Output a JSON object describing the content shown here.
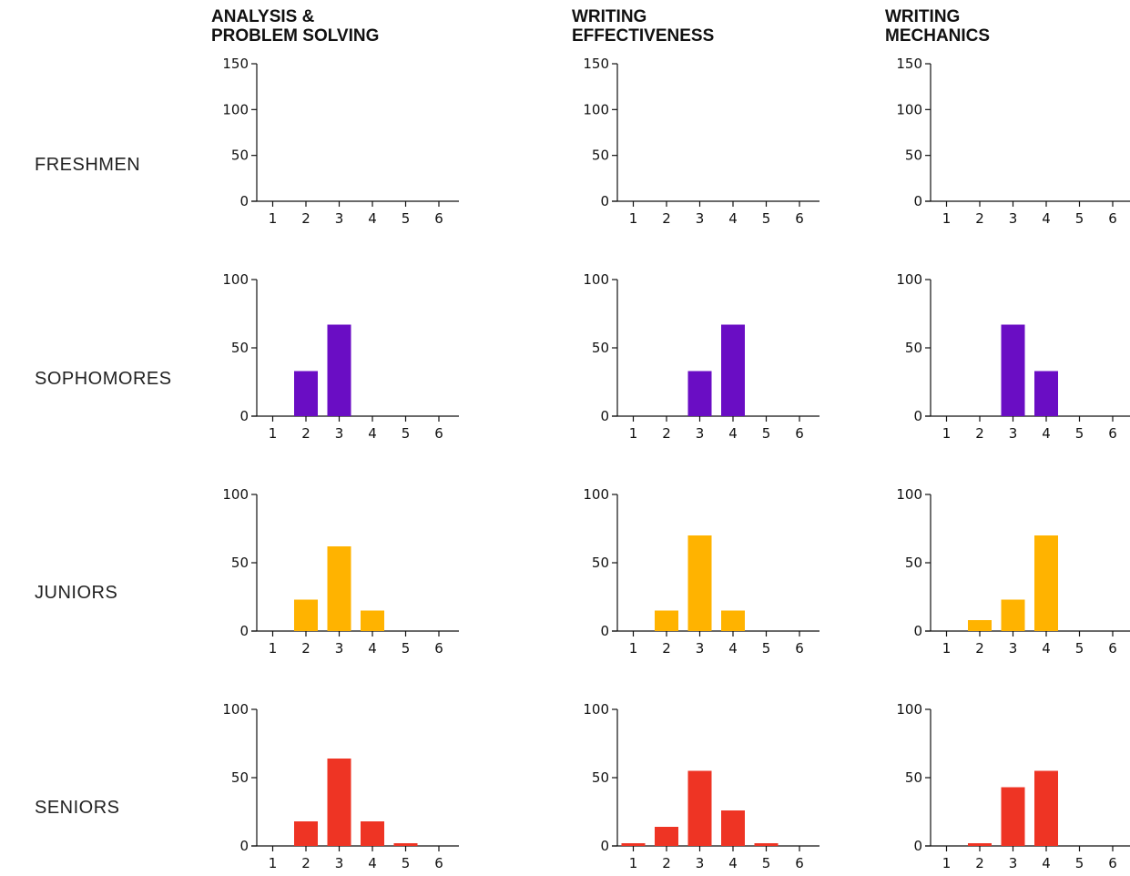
{
  "columns": [
    {
      "key": "analysis",
      "title": "ANALYSIS &\nPROBLEM SOLVING"
    },
    {
      "key": "effectiveness",
      "title": "WRITING\nEFFECTIVENESS"
    },
    {
      "key": "mechanics",
      "title": "WRITING\nMECHANICS"
    }
  ],
  "rows": [
    {
      "key": "freshmen",
      "label": "FRESHMEN",
      "color": "#6a0dc4"
    },
    {
      "key": "sophomores",
      "label": "SOPHOMORES",
      "color": "#6a0dc4"
    },
    {
      "key": "juniors",
      "label": "JUNIORS",
      "color": "#ffb300"
    },
    {
      "key": "seniors",
      "label": "SENIORS",
      "color": "#ee3424"
    }
  ],
  "chart_data": [
    {
      "type": "bar",
      "row": "FRESHMEN",
      "column": "ANALYSIS & PROBLEM SOLVING",
      "categories": [
        "1",
        "2",
        "3",
        "4",
        "5",
        "6"
      ],
      "values": [
        0,
        0,
        0,
        0,
        0,
        0
      ],
      "ylim": [
        0,
        150
      ],
      "yticks": [
        0,
        50,
        100,
        150
      ]
    },
    {
      "type": "bar",
      "row": "FRESHMEN",
      "column": "WRITING EFFECTIVENESS",
      "categories": [
        "1",
        "2",
        "3",
        "4",
        "5",
        "6"
      ],
      "values": [
        0,
        0,
        0,
        0,
        0,
        0
      ],
      "ylim": [
        0,
        150
      ],
      "yticks": [
        0,
        50,
        100,
        150
      ]
    },
    {
      "type": "bar",
      "row": "FRESHMEN",
      "column": "WRITING MECHANICS",
      "categories": [
        "1",
        "2",
        "3",
        "4",
        "5",
        "6"
      ],
      "values": [
        0,
        0,
        0,
        0,
        0,
        0
      ],
      "ylim": [
        0,
        150
      ],
      "yticks": [
        0,
        50,
        100,
        150
      ]
    },
    {
      "type": "bar",
      "row": "SOPHOMORES",
      "column": "ANALYSIS & PROBLEM SOLVING",
      "categories": [
        "1",
        "2",
        "3",
        "4",
        "5",
        "6"
      ],
      "values": [
        0,
        33,
        67,
        0,
        0,
        0
      ],
      "ylim": [
        0,
        100
      ],
      "yticks": [
        0,
        50,
        100
      ]
    },
    {
      "type": "bar",
      "row": "SOPHOMORES",
      "column": "WRITING EFFECTIVENESS",
      "categories": [
        "1",
        "2",
        "3",
        "4",
        "5",
        "6"
      ],
      "values": [
        0,
        0,
        33,
        67,
        0,
        0
      ],
      "ylim": [
        0,
        100
      ],
      "yticks": [
        0,
        50,
        100
      ]
    },
    {
      "type": "bar",
      "row": "SOPHOMORES",
      "column": "WRITING MECHANICS",
      "categories": [
        "1",
        "2",
        "3",
        "4",
        "5",
        "6"
      ],
      "values": [
        0,
        0,
        67,
        33,
        0,
        0
      ],
      "ylim": [
        0,
        100
      ],
      "yticks": [
        0,
        50,
        100
      ]
    },
    {
      "type": "bar",
      "row": "JUNIORS",
      "column": "ANALYSIS & PROBLEM SOLVING",
      "categories": [
        "1",
        "2",
        "3",
        "4",
        "5",
        "6"
      ],
      "values": [
        0,
        23,
        62,
        15,
        0,
        0
      ],
      "ylim": [
        0,
        100
      ],
      "yticks": [
        0,
        50,
        100
      ]
    },
    {
      "type": "bar",
      "row": "JUNIORS",
      "column": "WRITING EFFECTIVENESS",
      "categories": [
        "1",
        "2",
        "3",
        "4",
        "5",
        "6"
      ],
      "values": [
        0,
        15,
        70,
        15,
        0,
        0
      ],
      "ylim": [
        0,
        100
      ],
      "yticks": [
        0,
        50,
        100
      ]
    },
    {
      "type": "bar",
      "row": "JUNIORS",
      "column": "WRITING MECHANICS",
      "categories": [
        "1",
        "2",
        "3",
        "4",
        "5",
        "6"
      ],
      "values": [
        0,
        8,
        23,
        70,
        0,
        0
      ],
      "ylim": [
        0,
        100
      ],
      "yticks": [
        0,
        50,
        100
      ]
    },
    {
      "type": "bar",
      "row": "SENIORS",
      "column": "ANALYSIS & PROBLEM SOLVING",
      "categories": [
        "1",
        "2",
        "3",
        "4",
        "5",
        "6"
      ],
      "values": [
        0,
        18,
        64,
        18,
        2,
        0
      ],
      "ylim": [
        0,
        100
      ],
      "yticks": [
        0,
        50,
        100
      ]
    },
    {
      "type": "bar",
      "row": "SENIORS",
      "column": "WRITING EFFECTIVENESS",
      "categories": [
        "1",
        "2",
        "3",
        "4",
        "5",
        "6"
      ],
      "values": [
        2,
        14,
        55,
        26,
        2,
        0
      ],
      "ylim": [
        0,
        100
      ],
      "yticks": [
        0,
        50,
        100
      ]
    },
    {
      "type": "bar",
      "row": "SENIORS",
      "column": "WRITING MECHANICS",
      "categories": [
        "1",
        "2",
        "3",
        "4",
        "5",
        "6"
      ],
      "values": [
        0,
        2,
        43,
        55,
        0,
        0
      ],
      "ylim": [
        0,
        100
      ],
      "yticks": [
        0,
        50,
        100
      ]
    }
  ]
}
